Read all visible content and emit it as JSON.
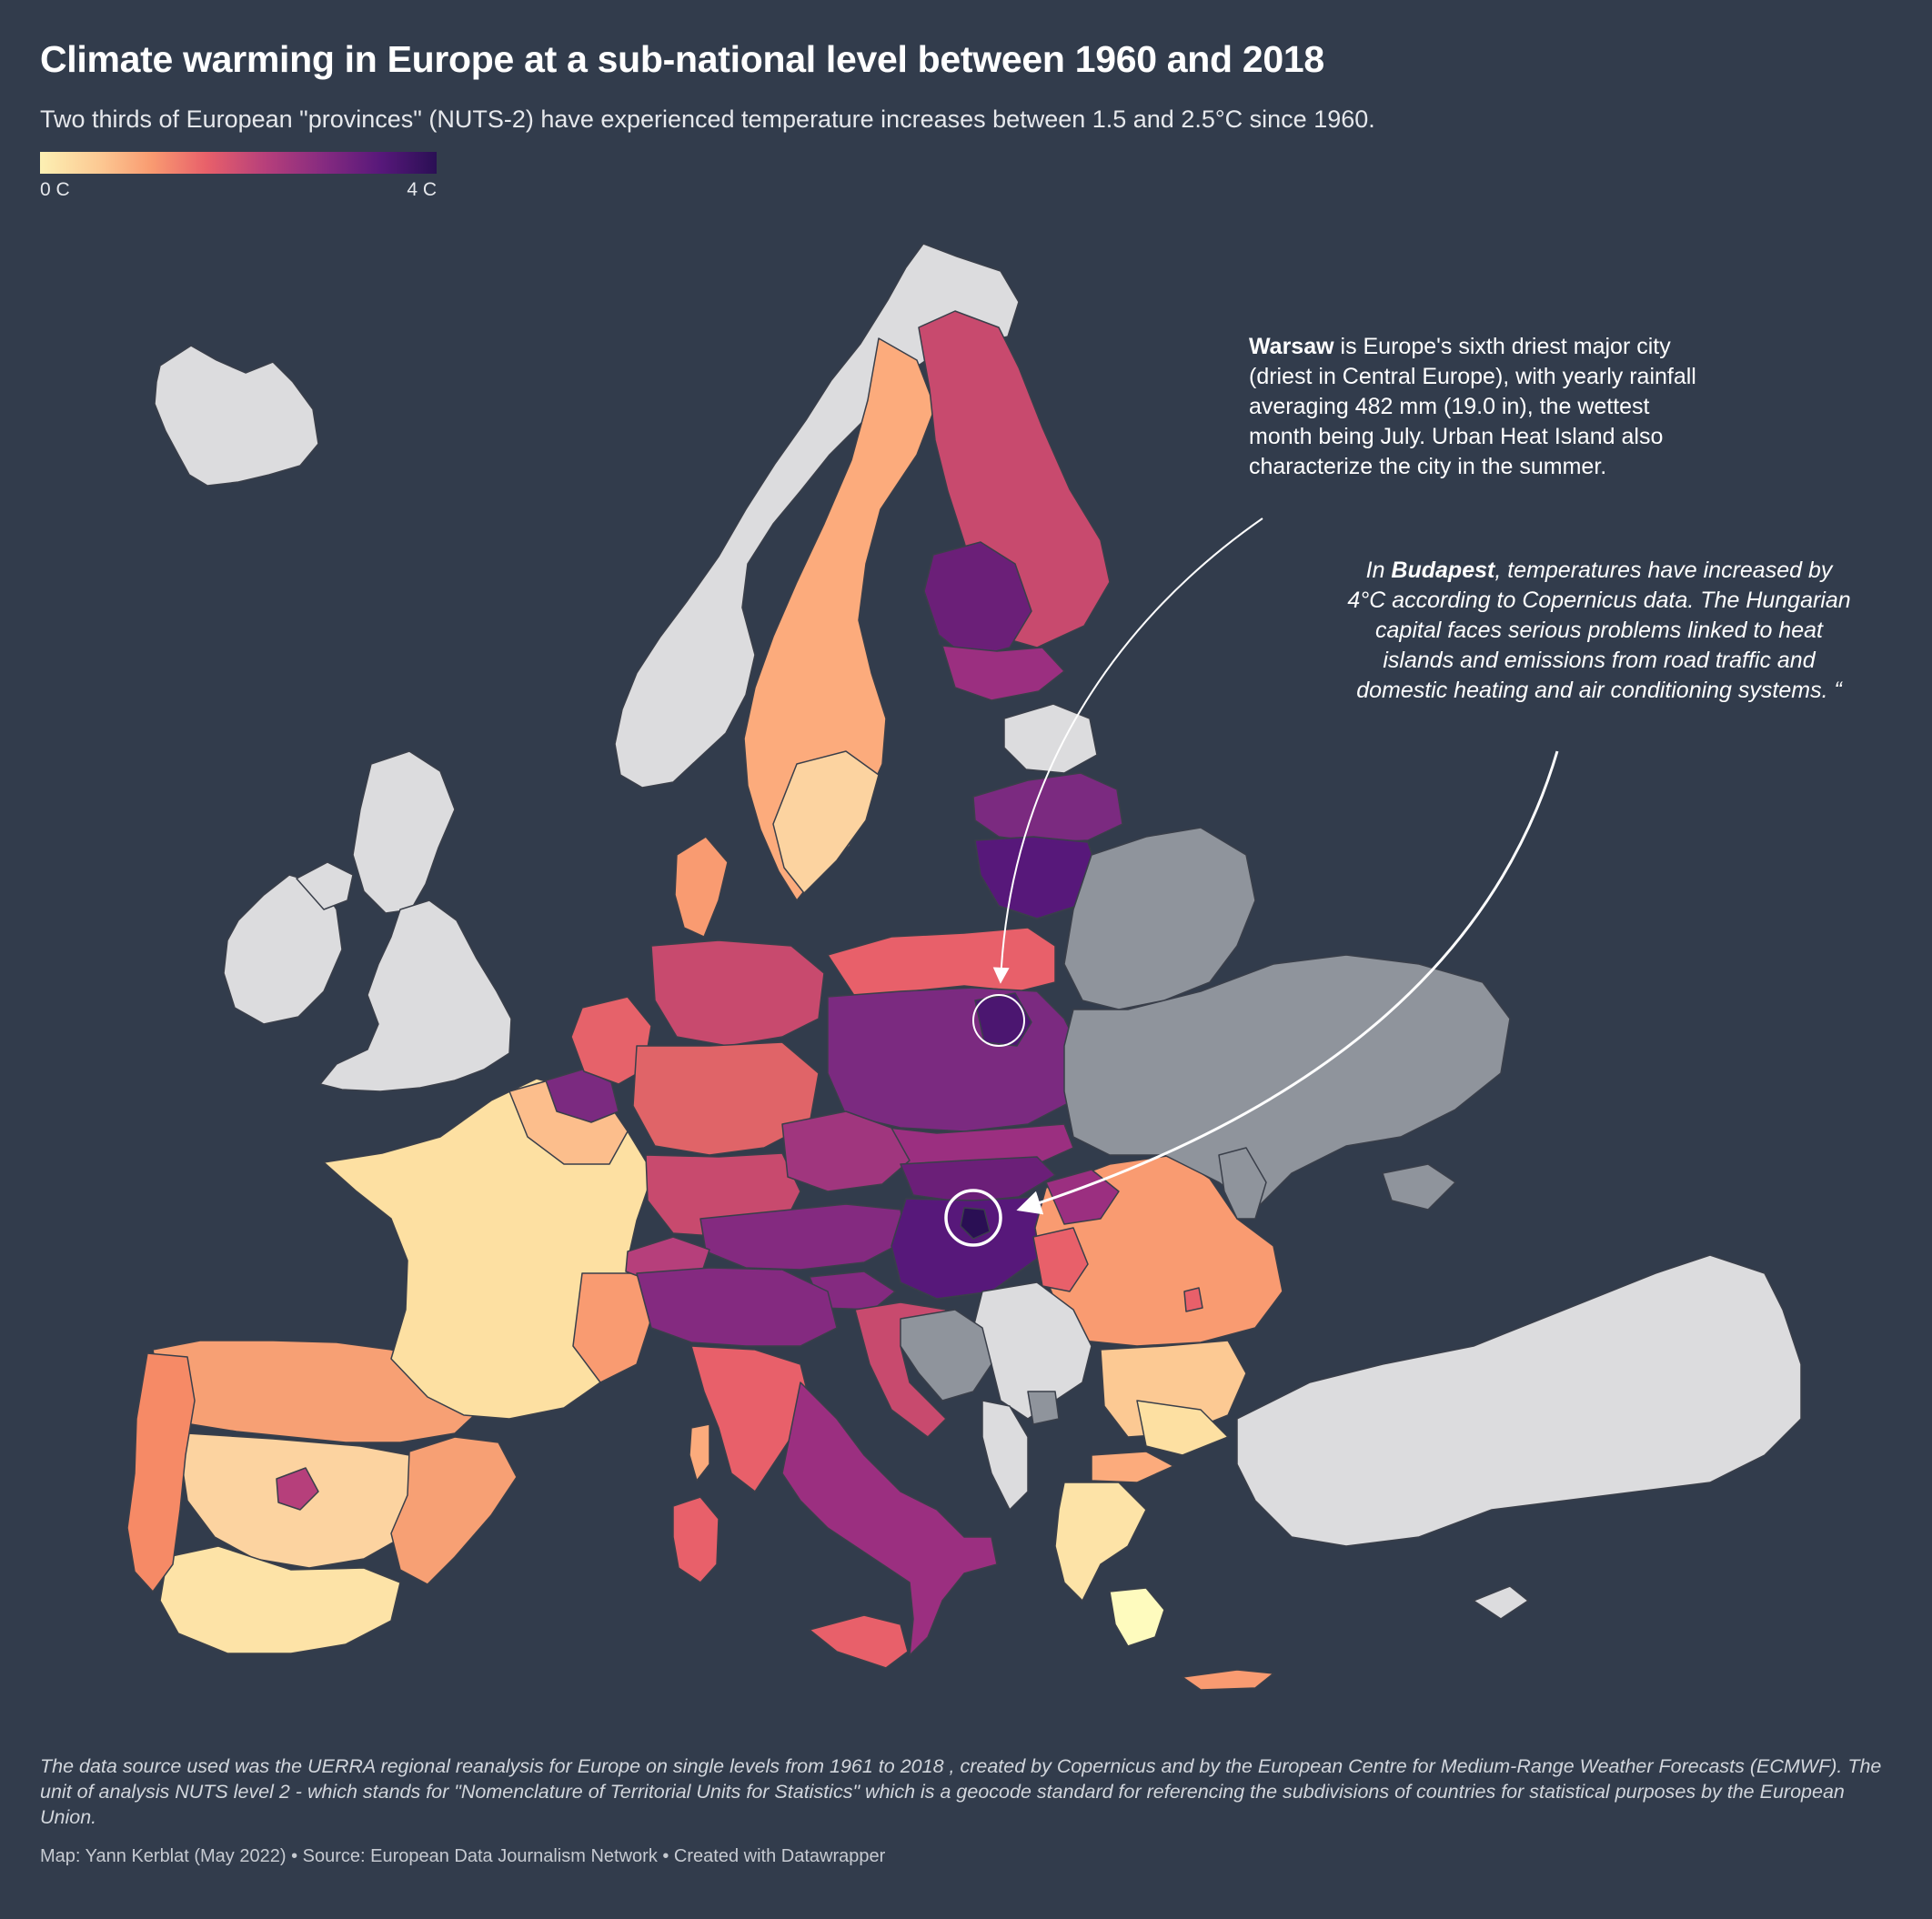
{
  "header": {
    "title": "Climate warming in Europe at a sub-national level between 1960 and 2018",
    "subtitle": "Two thirds of European \"provinces\" (NUTS-2) have experienced temperature increases between 1.5 and 2.5°C since 1960."
  },
  "legend": {
    "min_label": "0 C",
    "max_label": "4 C",
    "scale_colors": [
      "#fcf0b3",
      "#fcc993",
      "#f99b71",
      "#e8606a",
      "#b63f7b",
      "#842a80",
      "#57187a",
      "#2a0f54"
    ]
  },
  "colors": {
    "background": "#323c4c",
    "no_data_eu": "#dcdcde",
    "non_eu": "#8f949c",
    "region_border": "#3a3f4a"
  },
  "annotations": {
    "warsaw": {
      "bold": "Warsaw",
      "text": " is Europe's sixth driest major city (driest in Central Europe), with yearly rainfall averaging 482 mm (19.0 in), the wettest month being July. Urban Heat Island also characterize the city in the summer."
    },
    "budapest": {
      "prefix": "In ",
      "bold": "Budapest",
      "text": ", temperatures have increased by 4°C according to Copernicus data. The Hungarian capital faces serious problems linked to heat islands and emissions from road traffic and domestic heating and air conditioning systems. “"
    }
  },
  "footer": {
    "notes": "The data source used was the UERRA regional reanalysis for Europe on single levels from 1961 to 2018 , created by Copernicus and by the European Centre for Medium-Range Weather Forecasts (ECMWF). The unit of analysis NUTS level 2 - which stands for \"Nomenclature of Territorial Units for Statistics\" which is a geocode standard for referencing the subdivisions of countries for statistical purposes by the European Union.",
    "credit": "Map: Yann Kerblat (May 2022) • Source: European Data Journalism Network • Created with Datawrapper"
  }
}
